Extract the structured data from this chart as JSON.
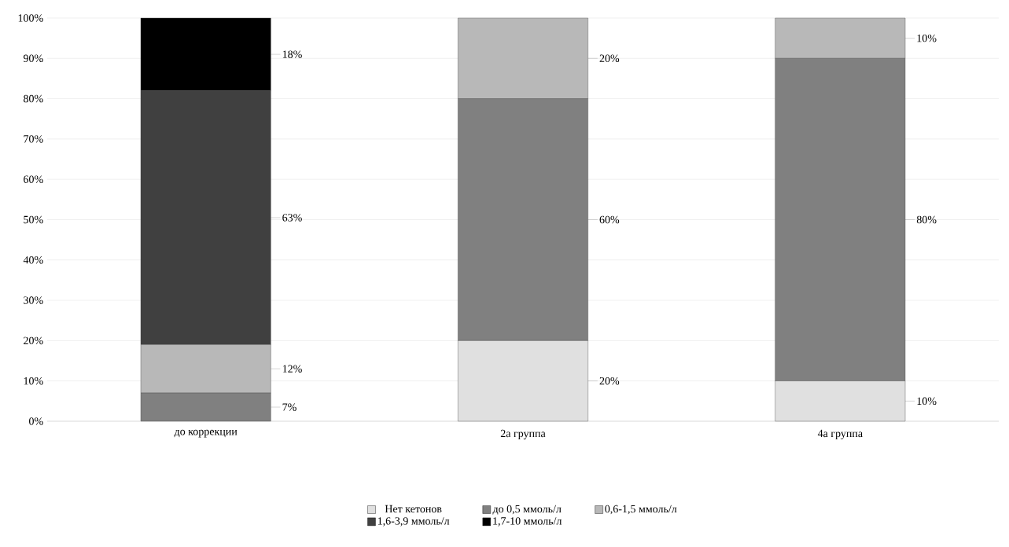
{
  "chart_data": {
    "type": "bar",
    "stacked": true,
    "categories": [
      "до коррекции",
      "2а группа",
      "4а группа"
    ],
    "series": [
      {
        "name": "Нет кетонов",
        "color": "#e0e0e0",
        "values": [
          0,
          20,
          10
        ],
        "value_labels": [
          null,
          "20%",
          "10%"
        ]
      },
      {
        "name": "до 0,5 ммоль/л",
        "color": "#808080",
        "values": [
          7,
          60,
          80
        ],
        "value_labels": [
          "7%",
          "60%",
          "80%"
        ]
      },
      {
        "name": "0,6-1,5 ммоль/л",
        "color": "#b8b8b8",
        "values": [
          12,
          20,
          10
        ],
        "value_labels": [
          "12%",
          "20%",
          "10%"
        ]
      },
      {
        "name": "1,6-3,9 ммоль/л",
        "color": "#404040",
        "values": [
          63,
          0,
          0
        ],
        "value_labels": [
          "63%",
          null,
          null
        ]
      },
      {
        "name": "1,7-10 ммоль/л",
        "color": "#000000",
        "values": [
          18,
          0,
          0
        ],
        "value_labels": [
          "18%",
          null,
          null
        ]
      }
    ],
    "ylim": [
      0,
      100
    ],
    "yticks": [
      {
        "value": 0,
        "label": "0%"
      },
      {
        "value": 10,
        "label": "10%"
      },
      {
        "value": 20,
        "label": "20%"
      },
      {
        "value": 30,
        "label": "30%"
      },
      {
        "value": 40,
        "label": "40%"
      },
      {
        "value": 50,
        "label": "50%"
      },
      {
        "value": 60,
        "label": "60%"
      },
      {
        "value": 70,
        "label": "70%"
      },
      {
        "value": 80,
        "label": "80%"
      },
      {
        "value": 90,
        "label": "90%"
      },
      {
        "value": 100,
        "label": "100%"
      }
    ],
    "grid": "y",
    "legend": "bottom"
  }
}
